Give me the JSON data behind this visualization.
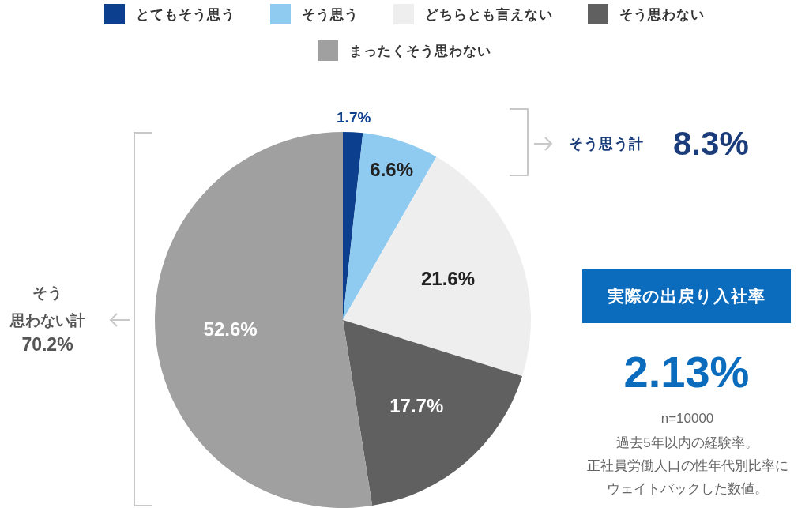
{
  "chart_data": {
    "type": "pie",
    "categories": [
      "とてもそう思う",
      "そう思う",
      "どちらとも言えない",
      "そう思わない",
      "まったくそう思わない"
    ],
    "values": [
      1.7,
      6.6,
      21.6,
      17.7,
      52.6
    ],
    "colors": [
      "#0d3f8f",
      "#8fcaf0",
      "#eeeeee",
      "#606060",
      "#a0a0a0"
    ],
    "value_labels": [
      "1.7%",
      "6.6%",
      "21.6%",
      "17.7%",
      "52.6%"
    ],
    "legend": "top",
    "annotations": [
      "そう思う計",
      "8.3%",
      "そう",
      "思わない計",
      "70.2%",
      "実際の出戻り入社率",
      "2.13%",
      "n=10000",
      "過去5年以内の経験率。",
      "正社員労働人口の性年代別比率に",
      "ウェイトバックした数値。"
    ]
  }
}
